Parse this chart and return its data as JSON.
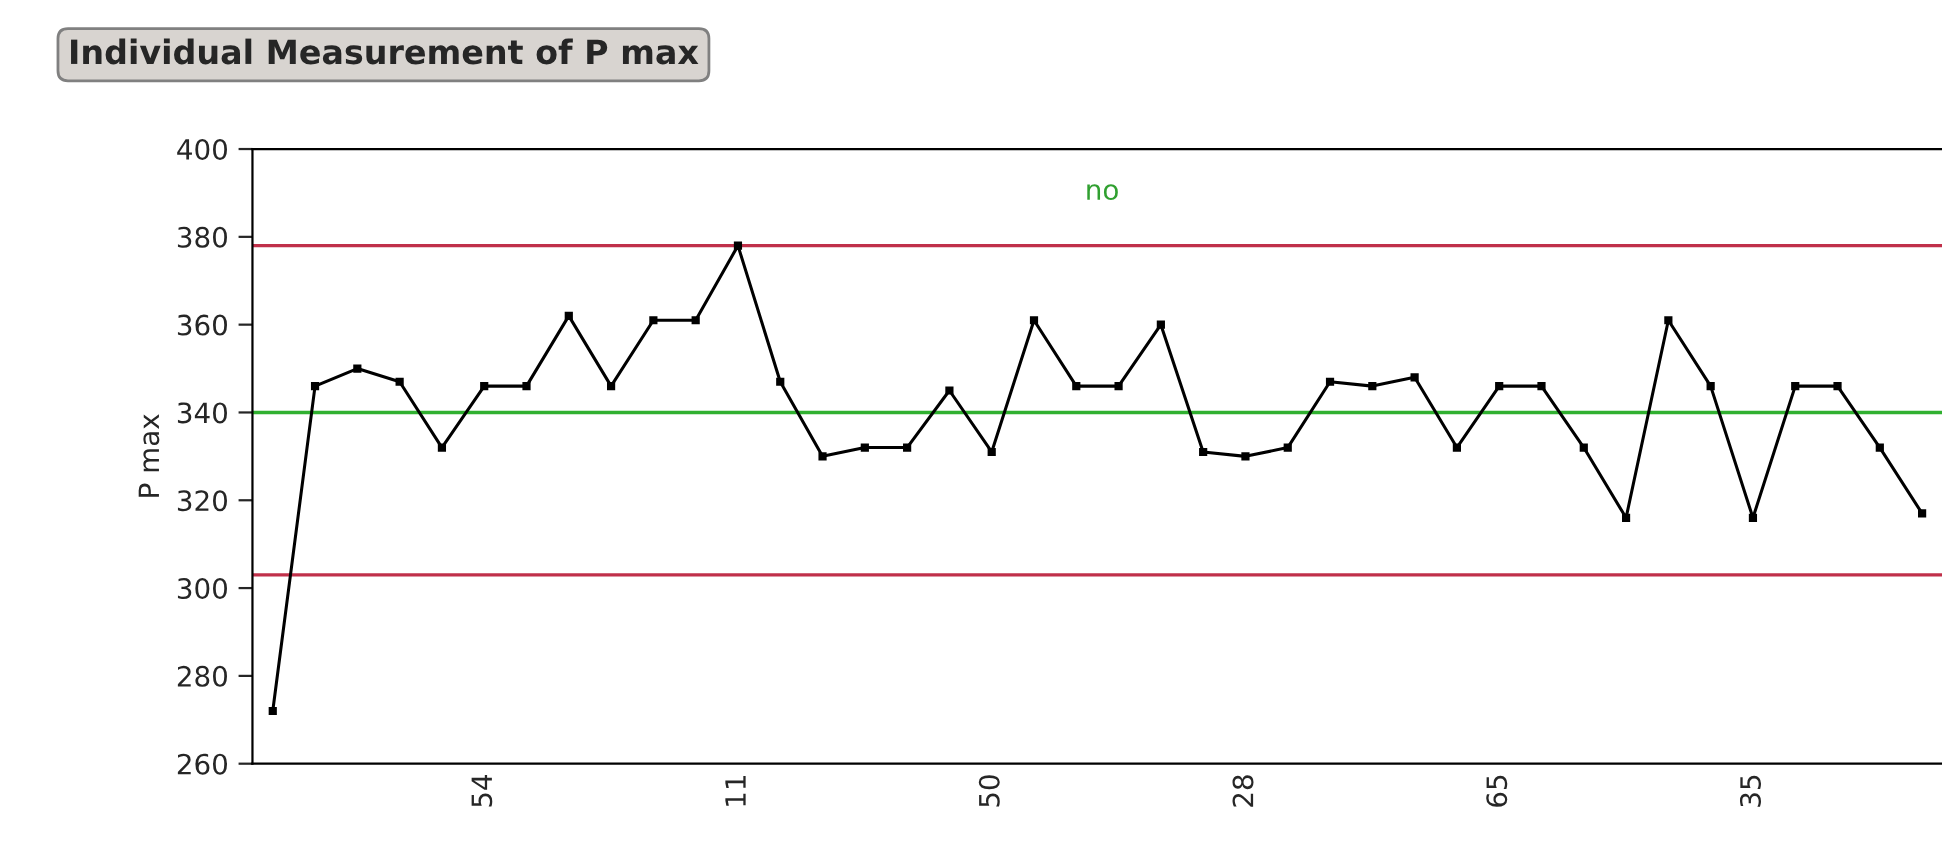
{
  "chart_data": {
    "type": "line",
    "title": "Individual Measurement of P max",
    "ylabel": "P max",
    "categories": [
      null,
      null,
      null,
      null,
      null,
      "54",
      null,
      null,
      null,
      null,
      null,
      "11",
      null,
      null,
      null,
      null,
      null,
      "50",
      null,
      null,
      null,
      null,
      null,
      "28",
      null,
      null,
      null,
      null,
      null,
      "65",
      null,
      null,
      null,
      null,
      null,
      "35",
      null,
      null,
      null,
      null
    ],
    "series": [
      {
        "color": "#000000",
        "values": [
          272,
          346,
          350,
          347,
          332,
          346,
          346,
          362,
          346,
          361,
          361,
          378,
          347,
          330,
          332,
          332,
          345,
          331,
          361,
          346,
          346,
          360,
          331,
          330,
          332,
          347,
          346,
          348,
          332,
          346,
          346,
          332,
          316,
          361,
          346,
          316,
          346,
          346,
          332,
          317
        ]
      }
    ],
    "ylim": [
      260,
      400
    ],
    "yticks": [
      260,
      280,
      300,
      320,
      340,
      360,
      380,
      400
    ],
    "ref_lines": [
      {
        "axis": "y",
        "value": 378,
        "color": "#c0304a"
      },
      {
        "axis": "y",
        "value": 340,
        "color": "#30b030"
      },
      {
        "axis": "y",
        "value": 303,
        "color": "#c0304a"
      }
    ],
    "annotations": [
      "no"
    ],
    "marker": "square",
    "line_style": "solid",
    "grid": false,
    "legend": false
  }
}
